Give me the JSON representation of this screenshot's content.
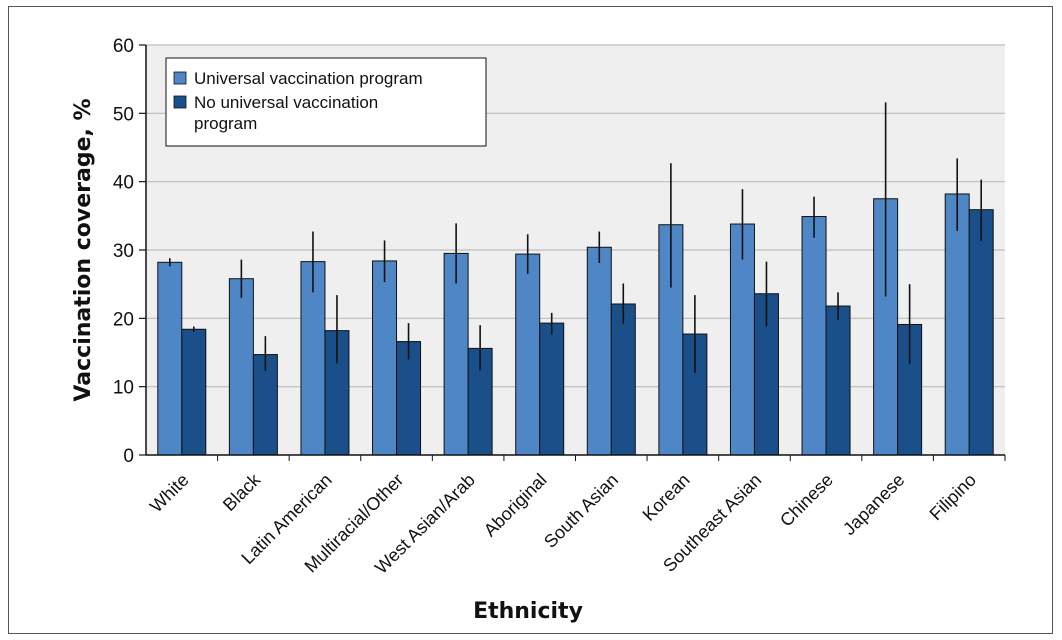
{
  "chart_data": {
    "type": "bar",
    "title": "",
    "xlabel": "Ethnicity",
    "ylabel": "Vaccination coverage, %",
    "ylim": [
      0,
      60
    ],
    "yticks": [
      0,
      10,
      20,
      30,
      40,
      50,
      60
    ],
    "grid": true,
    "legend_position": "top-left",
    "categories": [
      "White",
      "Black",
      "Latin American",
      "Multiracial/Other",
      "West Asian/Arab",
      "Aboriginal",
      "South Asian",
      "Korean",
      "Southeast Asian",
      "Chinese",
      "Japanese",
      "Filipino"
    ],
    "series": [
      {
        "name": "Universal vaccination program",
        "color": "#4f86c6",
        "values": [
          28.2,
          25.8,
          28.3,
          28.4,
          29.5,
          29.4,
          30.4,
          33.7,
          33.8,
          34.9,
          37.5,
          38.2
        ],
        "error_low": [
          27.6,
          23.0,
          23.8,
          25.3,
          25.1,
          26.5,
          28.1,
          24.5,
          28.6,
          31.8,
          23.2,
          32.8
        ],
        "error_high": [
          28.8,
          28.6,
          32.7,
          31.4,
          33.9,
          32.3,
          32.7,
          42.7,
          38.9,
          37.8,
          51.6,
          43.4
        ]
      },
      {
        "name": "No universal vaccination program",
        "color": "#1b4f8a",
        "values": [
          18.4,
          14.7,
          18.2,
          16.6,
          15.6,
          19.3,
          22.1,
          17.7,
          23.6,
          21.8,
          19.1,
          35.9
        ],
        "error_low": [
          18.0,
          12.3,
          13.4,
          14.0,
          12.4,
          17.6,
          19.2,
          12.0,
          18.8,
          19.8,
          13.3,
          31.3
        ],
        "error_high": [
          18.8,
          17.4,
          23.4,
          19.3,
          19.0,
          20.8,
          25.1,
          23.4,
          28.3,
          23.8,
          25.0,
          40.3
        ]
      }
    ]
  }
}
